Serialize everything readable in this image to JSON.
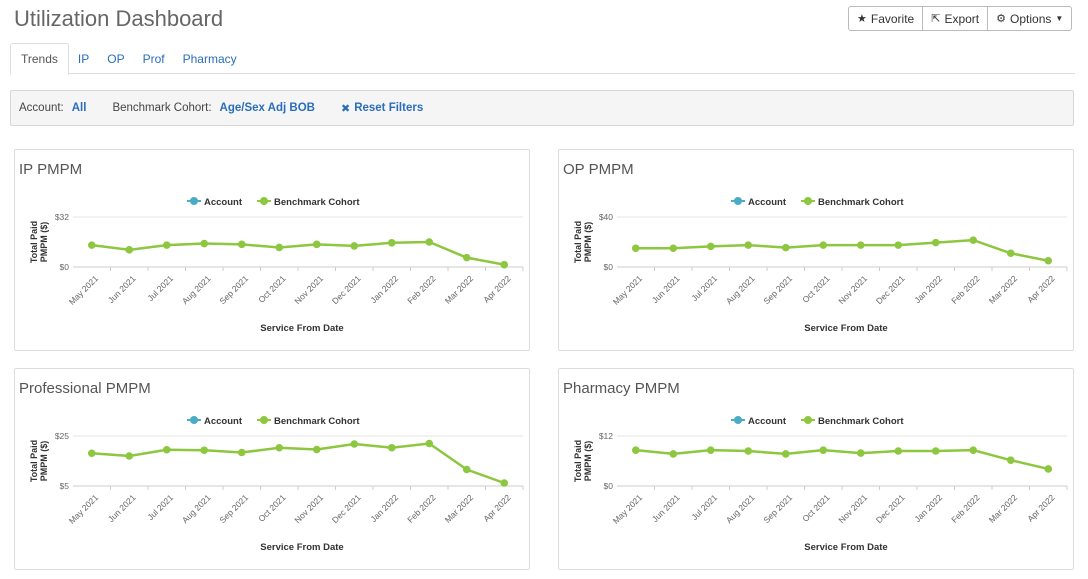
{
  "page": {
    "title": "Utilization Dashboard"
  },
  "toolbar": {
    "favorite_label": "Favorite",
    "favorite_icon": "star-icon",
    "export_label": "Export",
    "export_icon": "share-icon",
    "options_label": "Options",
    "options_icon": "gear-icon"
  },
  "tabs": [
    {
      "label": "Trends",
      "active": true
    },
    {
      "label": "IP"
    },
    {
      "label": "OP"
    },
    {
      "label": "Prof"
    },
    {
      "label": "Pharmacy"
    }
  ],
  "filters": {
    "account_label": "Account:",
    "account_value": "All",
    "cohort_label": "Benchmark Cohort:",
    "cohort_value": "Age/Sex Adj BOB",
    "reset_label": "Reset Filters",
    "reset_icon": "close-icon"
  },
  "colors": {
    "account": "#4bacc6",
    "benchmark": "#8dc63f",
    "link": "#2a6ebb"
  },
  "chart_data": [
    {
      "type": "line",
      "title": "IP PMPM",
      "xlabel": "Service From Date",
      "ylabel": "Total Paid PMPM ($)",
      "ytick_labels": [
        "$0",
        "$32"
      ],
      "ylim": [
        0,
        32
      ],
      "legend": [
        "Account",
        "Benchmark Cohort"
      ],
      "legend_position": "top-center",
      "categories": [
        "May 2021",
        "Jun 2021",
        "Jul 2021",
        "Aug 2021",
        "Sep 2021",
        "Oct 2021",
        "Nov 2021",
        "Dec 2021",
        "Jan 2022",
        "Feb 2022",
        "Mar 2022",
        "Apr 2022"
      ],
      "series": [
        {
          "name": "Benchmark Cohort",
          "values": [
            14,
            11,
            14,
            15,
            14.5,
            12.5,
            14.5,
            13.5,
            15.5,
            16,
            6,
            1.5
          ]
        }
      ]
    },
    {
      "type": "line",
      "title": "OP PMPM",
      "xlabel": "Service From Date",
      "ylabel": "Total Paid PMPM ($)",
      "ytick_labels": [
        "$0",
        "$40"
      ],
      "ylim": [
        0,
        40
      ],
      "legend": [
        "Account",
        "Benchmark Cohort"
      ],
      "legend_position": "top-center",
      "categories": [
        "May 2021",
        "Jun 2021",
        "Jul 2021",
        "Aug 2021",
        "Sep 2021",
        "Oct 2021",
        "Nov 2021",
        "Dec 2021",
        "Jan 2022",
        "Feb 2022",
        "Mar 2022",
        "Apr 2022"
      ],
      "series": [
        {
          "name": "Benchmark Cohort",
          "values": [
            15,
            15,
            16.5,
            17.5,
            15.5,
            17.5,
            17.5,
            17.5,
            19.5,
            21.5,
            11,
            5
          ]
        }
      ]
    },
    {
      "type": "line",
      "title": "Professional PMPM",
      "xlabel": "Service From Date",
      "ylabel": "Total Paid PMPM ($)",
      "ytick_labels": [
        "$5",
        "$25"
      ],
      "ylim": [
        5,
        25
      ],
      "legend": [
        "Account",
        "Benchmark Cohort"
      ],
      "legend_position": "top-center",
      "categories": [
        "May 2021",
        "Jun 2021",
        "Jul 2021",
        "Aug 2021",
        "Sep 2021",
        "Oct 2021",
        "Nov 2021",
        "Dec 2021",
        "Jan 2022",
        "Feb 2022",
        "Mar 2022",
        "Apr 2022"
      ],
      "series": [
        {
          "name": "Benchmark Cohort",
          "values": [
            18.1,
            17,
            19.5,
            19.3,
            18.4,
            20.3,
            19.6,
            21.8,
            20.3,
            22,
            11.6,
            6.2
          ]
        }
      ]
    },
    {
      "type": "line",
      "title": "Pharmacy PMPM",
      "xlabel": "Service From Date",
      "ylabel": "Total Paid PMPM ($)",
      "ytick_labels": [
        "$0",
        "$12"
      ],
      "ylim": [
        0,
        12
      ],
      "legend": [
        "Account",
        "Benchmark Cohort"
      ],
      "legend_position": "top-center",
      "categories": [
        "May 2021",
        "Jun 2021",
        "Jul 2021",
        "Aug 2021",
        "Sep 2021",
        "Oct 2021",
        "Nov 2021",
        "Dec 2021",
        "Jan 2022",
        "Feb 2022",
        "Mar 2022",
        "Apr 2022"
      ],
      "series": [
        {
          "name": "Benchmark Cohort",
          "values": [
            8.6,
            7.7,
            8.6,
            8.4,
            7.7,
            8.6,
            7.9,
            8.4,
            8.4,
            8.6,
            6.2,
            4.1
          ]
        }
      ]
    }
  ]
}
